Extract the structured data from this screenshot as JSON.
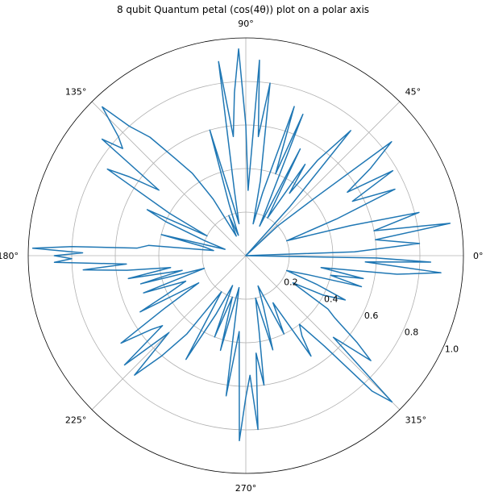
{
  "chart_data": {
    "type": "polar-line",
    "title": "8 qubit Quantum petal (cos(4θ)) plot on a polar axis",
    "theta_tick_labels": [
      "0°",
      "45°",
      "90°",
      "135°",
      "180°",
      "225°",
      "270°",
      "315°"
    ],
    "theta_ticks_deg": [
      0,
      45,
      90,
      135,
      180,
      225,
      270,
      315
    ],
    "r_ticks": [
      0.2,
      0.4,
      0.6,
      0.8,
      1.0
    ],
    "r_tick_labels": [
      "0.2",
      "0.4",
      "0.6",
      "0.8",
      "1.0"
    ],
    "r_max": 1.0,
    "r_label_angle_deg": 337.5,
    "grid": true,
    "series": [
      {
        "color": "#1f77b4",
        "points": [
          [
            0,
            0.0
          ],
          [
            2,
            0.5
          ],
          [
            4,
            0.8
          ],
          [
            7,
            0.6
          ],
          [
            9,
            0.95
          ],
          [
            11,
            0.6
          ],
          [
            14,
            0.82
          ],
          [
            16,
            0.5
          ],
          [
            20,
            0.2
          ],
          [
            22,
            0.45
          ],
          [
            24,
            0.75
          ],
          [
            27,
            0.55
          ],
          [
            30,
            0.78
          ],
          [
            32,
            0.55
          ],
          [
            35,
            0.7
          ],
          [
            38,
            0.85
          ],
          [
            40,
            0.4
          ],
          [
            43,
            0.2
          ],
          [
            45,
            0.0
          ],
          [
            48,
            0.3
          ],
          [
            50,
            0.75
          ],
          [
            53,
            0.55
          ],
          [
            55,
            0.35
          ],
          [
            57,
            0.5
          ],
          [
            60,
            0.2
          ],
          [
            63,
            0.55
          ],
          [
            65,
            0.15
          ],
          [
            68,
            0.7
          ],
          [
            70,
            0.4
          ],
          [
            72,
            0.72
          ],
          [
            75,
            0.3
          ],
          [
            77,
            0.15
          ],
          [
            79,
            0.35
          ],
          [
            82,
            0.8
          ],
          [
            84,
            0.55
          ],
          [
            86,
            0.9
          ],
          [
            88,
            0.3
          ],
          [
            90,
            0.6
          ],
          [
            92,
            0.95
          ],
          [
            94,
            0.75
          ],
          [
            96,
            0.55
          ],
          [
            98,
            0.9
          ],
          [
            100,
            0.3
          ],
          [
            102,
            0.15
          ],
          [
            104,
            0.25
          ],
          [
            106,
            0.6
          ],
          [
            108,
            0.25
          ],
          [
            110,
            0.1
          ],
          [
            113,
            0.2
          ],
          [
            116,
            0.1
          ],
          [
            120,
            0.3
          ],
          [
            123,
            0.45
          ],
          [
            126,
            0.55
          ],
          [
            129,
            0.7
          ],
          [
            132,
            0.8
          ],
          [
            134,
            0.95
          ],
          [
            137,
            0.8
          ],
          [
            139,
            0.75
          ],
          [
            141,
            0.85
          ],
          [
            143,
            0.5
          ],
          [
            146,
            0.65
          ],
          [
            148,
            0.75
          ],
          [
            151,
            0.4
          ],
          [
            153,
            0.2
          ],
          [
            155,
            0.5
          ],
          [
            157,
            0.4
          ],
          [
            160,
            0.2
          ],
          [
            163,
            0.1
          ],
          [
            166,
            0.4
          ],
          [
            168,
            0.2
          ],
          [
            171,
            0.15
          ],
          [
            174,
            0.45
          ],
          [
            176,
            0.5
          ],
          [
            177,
            0.8
          ],
          [
            178,
            0.98
          ],
          [
            179,
            0.75
          ],
          [
            180,
            0.88
          ],
          [
            181,
            0.8
          ],
          [
            182,
            0.88
          ],
          [
            184,
            0.55
          ],
          [
            185,
            0.75
          ],
          [
            187,
            0.55
          ],
          [
            189,
            0.35
          ],
          [
            191,
            0.55
          ],
          [
            193,
            0.3
          ],
          [
            195,
            0.5
          ],
          [
            197,
            0.2
          ],
          [
            200,
            0.5
          ],
          [
            203,
            0.3
          ],
          [
            206,
            0.4
          ],
          [
            208,
            0.55
          ],
          [
            210,
            0.25
          ],
          [
            213,
            0.45
          ],
          [
            215,
            0.7
          ],
          [
            218,
            0.55
          ],
          [
            220,
            0.5
          ],
          [
            222,
            0.75
          ],
          [
            225,
            0.5
          ],
          [
            227,
            0.75
          ],
          [
            230,
            0.6
          ],
          [
            233,
            0.45
          ],
          [
            236,
            0.2
          ],
          [
            240,
            0.55
          ],
          [
            243,
            0.3
          ],
          [
            246,
            0.15
          ],
          [
            249,
            0.4
          ],
          [
            252,
            0.2
          ],
          [
            255,
            0.45
          ],
          [
            258,
            0.15
          ],
          [
            262,
            0.65
          ],
          [
            265,
            0.35
          ],
          [
            268,
            0.85
          ],
          [
            270,
            0.65
          ],
          [
            272,
            0.55
          ],
          [
            274,
            0.8
          ],
          [
            276,
            0.45
          ],
          [
            278,
            0.6
          ],
          [
            280,
            0.35
          ],
          [
            283,
            0.2
          ],
          [
            286,
            0.45
          ],
          [
            289,
            0.25
          ],
          [
            292,
            0.15
          ],
          [
            296,
            0.4
          ],
          [
            300,
            0.25
          ],
          [
            303,
            0.55
          ],
          [
            305,
            0.45
          ],
          [
            308,
            0.4
          ],
          [
            311,
            0.55
          ],
          [
            313,
            0.85
          ],
          [
            315,
            0.95
          ],
          [
            317,
            0.55
          ],
          [
            320,
            0.75
          ],
          [
            322,
            0.65
          ],
          [
            325,
            0.5
          ],
          [
            327,
            0.45
          ],
          [
            330,
            0.25
          ],
          [
            333,
            0.4
          ],
          [
            336,
            0.5
          ],
          [
            338,
            0.35
          ],
          [
            340,
            0.2
          ],
          [
            343,
            0.3
          ],
          [
            345,
            0.55
          ],
          [
            347,
            0.4
          ],
          [
            349,
            0.55
          ],
          [
            351,
            0.35
          ],
          [
            353,
            0.7
          ],
          [
            355,
            0.9
          ],
          [
            357,
            0.55
          ],
          [
            358,
            0.85
          ],
          [
            359,
            0.6
          ],
          [
            360,
            0.0
          ]
        ]
      }
    ]
  }
}
